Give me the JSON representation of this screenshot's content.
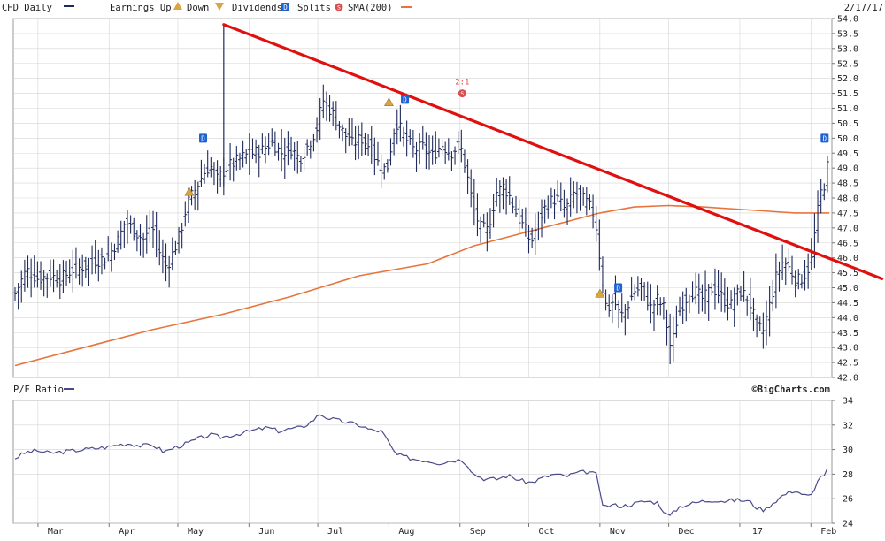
{
  "legend": {
    "ticker": "CHD Daily",
    "earnings_label": "Earnings Up",
    "down_label": "Down",
    "dividends_label": "Dividends",
    "dividend_badge": "D",
    "splits_label": "Splits",
    "split_badge": "S",
    "sma_label": "SMA(200)",
    "date": "2/17/17"
  },
  "pe_panel": {
    "label": "P/E Ratio"
  },
  "source": "©BigCharts.com",
  "colors": {
    "price_bar": "#1f2a5a",
    "sma": "#e8743b",
    "trendline": "#e01010",
    "pe_line": "#4a4a8a",
    "grid": "#d5d5d5",
    "badge_blue": "#1e62d0",
    "earnings_triangle": "#d9a441",
    "split_badge": "#d94f4f"
  },
  "chart_data": [
    {
      "type": "ohlc",
      "series_label": "CHD Daily",
      "ylim": [
        42.0,
        54.0
      ],
      "y_ticks": [
        "42.0",
        "42.5",
        "43.0",
        "43.5",
        "44.0",
        "44.5",
        "45.0",
        "45.5",
        "46.0",
        "46.5",
        "47.0",
        "47.5",
        "48.0",
        "48.5",
        "49.0",
        "49.5",
        "50.0",
        "50.5",
        "51.0",
        "51.5",
        "52.0",
        "52.5",
        "53.0",
        "53.5",
        "54.0"
      ],
      "x_ticks": [
        {
          "label": "Mar",
          "day": 10
        },
        {
          "label": "Apr",
          "day": 41
        },
        {
          "label": "May",
          "day": 71
        },
        {
          "label": "Jun",
          "day": 102
        },
        {
          "label": "Jul",
          "day": 132
        },
        {
          "label": "Aug",
          "day": 163
        },
        {
          "label": "Sep",
          "day": 194
        },
        {
          "label": "Oct",
          "day": 224
        },
        {
          "label": "Nov",
          "day": 255
        },
        {
          "label": "Dec",
          "day": 285
        },
        {
          "label": "17",
          "day": 316
        },
        {
          "label": "Feb",
          "day": 347
        }
      ],
      "x_range_days": [
        0,
        355
      ],
      "price_path": [
        [
          0,
          44.8
        ],
        [
          5,
          45.6
        ],
        [
          10,
          45.3
        ],
        [
          15,
          45.4
        ],
        [
          20,
          45.3
        ],
        [
          25,
          45.6
        ],
        [
          30,
          45.7
        ],
        [
          35,
          45.9
        ],
        [
          40,
          46.0
        ],
        [
          45,
          46.6
        ],
        [
          48,
          47.2
        ],
        [
          52,
          46.9
        ],
        [
          56,
          46.6
        ],
        [
          60,
          47.0
        ],
        [
          63,
          46.2
        ],
        [
          66,
          45.7
        ],
        [
          68,
          46.0
        ],
        [
          72,
          46.8
        ],
        [
          75,
          47.8
        ],
        [
          78,
          48.2
        ],
        [
          82,
          48.8
        ],
        [
          85,
          49.1
        ],
        [
          88,
          48.6
        ],
        [
          92,
          49.0
        ],
        [
          96,
          49.2
        ],
        [
          100,
          49.4
        ],
        [
          104,
          49.5
        ],
        [
          108,
          49.6
        ],
        [
          112,
          49.9
        ],
        [
          116,
          49.5
        ],
        [
          120,
          49.7
        ],
        [
          124,
          49.3
        ],
        [
          128,
          49.8
        ],
        [
          132,
          50.4
        ],
        [
          134,
          51.3
        ],
        [
          137,
          51.0
        ],
        [
          140,
          50.6
        ],
        [
          143,
          50.2
        ],
        [
          147,
          49.8
        ],
        [
          151,
          50.0
        ],
        [
          155,
          49.7
        ],
        [
          158,
          49.2
        ],
        [
          162,
          48.9
        ],
        [
          166,
          50.6
        ],
        [
          170,
          50.0
        ],
        [
          174,
          49.6
        ],
        [
          178,
          49.7
        ],
        [
          182,
          49.4
        ],
        [
          186,
          49.8
        ],
        [
          190,
          49.5
        ],
        [
          194,
          49.8
        ],
        [
          197,
          48.8
        ],
        [
          200,
          47.6
        ],
        [
          203,
          47.0
        ],
        [
          206,
          46.9
        ],
        [
          210,
          48.2
        ],
        [
          213,
          48.4
        ],
        [
          216,
          48.0
        ],
        [
          219,
          47.4
        ],
        [
          222,
          47.0
        ],
        [
          225,
          46.5
        ],
        [
          228,
          47.2
        ],
        [
          232,
          47.8
        ],
        [
          236,
          48.0
        ],
        [
          240,
          47.6
        ],
        [
          244,
          48.2
        ],
        [
          247,
          48.0
        ],
        [
          250,
          47.8
        ],
        [
          253,
          47.3
        ],
        [
          256,
          45.3
        ],
        [
          258,
          44.2
        ],
        [
          261,
          44.6
        ],
        [
          264,
          44.0
        ],
        [
          267,
          44.4
        ],
        [
          270,
          44.9
        ],
        [
          274,
          45.0
        ],
        [
          277,
          44.3
        ],
        [
          280,
          44.6
        ],
        [
          283,
          44.3
        ],
        [
          286,
          42.9
        ],
        [
          289,
          44.1
        ],
        [
          292,
          44.6
        ],
        [
          296,
          44.9
        ],
        [
          300,
          44.6
        ],
        [
          304,
          45.0
        ],
        [
          308,
          44.7
        ],
        [
          312,
          44.4
        ],
        [
          316,
          44.9
        ],
        [
          320,
          44.6
        ],
        [
          323,
          43.8
        ],
        [
          326,
          43.5
        ],
        [
          329,
          44.4
        ],
        [
          332,
          45.4
        ],
        [
          335,
          45.9
        ],
        [
          338,
          45.6
        ],
        [
          341,
          45.2
        ],
        [
          344,
          45.4
        ],
        [
          347,
          45.8
        ],
        [
          349,
          47.0
        ],
        [
          351,
          48.1
        ],
        [
          353,
          48.5
        ],
        [
          355,
          49.4
        ]
      ],
      "spike": {
        "day": 91,
        "high": 53.8,
        "low": 48.4
      },
      "sma_200": [
        [
          0,
          42.4
        ],
        [
          30,
          43.0
        ],
        [
          60,
          43.6
        ],
        [
          90,
          44.1
        ],
        [
          120,
          44.7
        ],
        [
          150,
          45.4
        ],
        [
          180,
          45.8
        ],
        [
          200,
          46.4
        ],
        [
          220,
          46.8
        ],
        [
          240,
          47.2
        ],
        [
          255,
          47.5
        ],
        [
          270,
          47.7
        ],
        [
          285,
          47.75
        ],
        [
          300,
          47.7
        ],
        [
          320,
          47.6
        ],
        [
          340,
          47.5
        ],
        [
          355,
          47.5
        ]
      ],
      "trendline": {
        "start": [
          91,
          53.8
        ],
        "end": [
          378,
          45.3
        ]
      },
      "markers": [
        {
          "kind": "earnings",
          "day": 76,
          "value": 48.2
        },
        {
          "kind": "dividend",
          "day": 82,
          "value": 50.0
        },
        {
          "kind": "earnings",
          "day": 163,
          "value": 51.2
        },
        {
          "kind": "dividend",
          "day": 170,
          "value": 51.3
        },
        {
          "kind": "split",
          "day": 195,
          "value": 51.5,
          "label": "2:1"
        },
        {
          "kind": "earnings",
          "day": 255,
          "value": 44.8
        },
        {
          "kind": "dividend",
          "day": 263,
          "value": 45.0
        },
        {
          "kind": "dividend",
          "day": 353,
          "value": 50.0
        }
      ]
    },
    {
      "type": "line",
      "series_label": "P/E Ratio",
      "ylim": [
        24,
        34
      ],
      "y_ticks": [
        24,
        26,
        28,
        30,
        32,
        34
      ],
      "x_range_days": [
        0,
        355
      ],
      "values": [
        [
          0,
          29.3
        ],
        [
          5,
          29.8
        ],
        [
          10,
          29.9
        ],
        [
          15,
          29.7
        ],
        [
          20,
          29.8
        ],
        [
          25,
          29.9
        ],
        [
          30,
          30.0
        ],
        [
          35,
          30.1
        ],
        [
          40,
          30.2
        ],
        [
          45,
          30.4
        ],
        [
          50,
          30.5
        ],
        [
          55,
          30.3
        ],
        [
          60,
          30.4
        ],
        [
          65,
          29.8
        ],
        [
          70,
          30.2
        ],
        [
          75,
          30.5
        ],
        [
          80,
          30.9
        ],
        [
          85,
          31.2
        ],
        [
          90,
          31.0
        ],
        [
          95,
          31.2
        ],
        [
          100,
          31.4
        ],
        [
          105,
          31.6
        ],
        [
          110,
          31.8
        ],
        [
          115,
          31.5
        ],
        [
          120,
          31.7
        ],
        [
          125,
          31.8
        ],
        [
          130,
          32.4
        ],
        [
          133,
          32.9
        ],
        [
          136,
          32.6
        ],
        [
          140,
          32.4
        ],
        [
          145,
          32.2
        ],
        [
          150,
          32.0
        ],
        [
          155,
          31.6
        ],
        [
          160,
          31.5
        ],
        [
          164,
          30.2
        ],
        [
          166,
          29.6
        ],
        [
          170,
          29.4
        ],
        [
          175,
          29.2
        ],
        [
          180,
          29.1
        ],
        [
          185,
          28.9
        ],
        [
          190,
          29.1
        ],
        [
          195,
          29.2
        ],
        [
          198,
          28.6
        ],
        [
          200,
          28.0
        ],
        [
          205,
          27.6
        ],
        [
          210,
          27.6
        ],
        [
          215,
          27.9
        ],
        [
          220,
          27.5
        ],
        [
          225,
          27.3
        ],
        [
          230,
          27.7
        ],
        [
          235,
          28.0
        ],
        [
          240,
          27.8
        ],
        [
          245,
          28.1
        ],
        [
          250,
          28.2
        ],
        [
          254,
          27.9
        ],
        [
          256,
          25.3
        ],
        [
          260,
          25.5
        ],
        [
          265,
          25.4
        ],
        [
          270,
          25.6
        ],
        [
          275,
          25.8
        ],
        [
          280,
          25.7
        ],
        [
          285,
          24.5
        ],
        [
          290,
          25.4
        ],
        [
          295,
          25.6
        ],
        [
          300,
          25.8
        ],
        [
          305,
          25.9
        ],
        [
          310,
          25.8
        ],
        [
          315,
          25.9
        ],
        [
          320,
          25.8
        ],
        [
          324,
          25.2
        ],
        [
          327,
          25.1
        ],
        [
          330,
          25.6
        ],
        [
          335,
          26.3
        ],
        [
          340,
          26.7
        ],
        [
          345,
          26.2
        ],
        [
          348,
          26.3
        ],
        [
          350,
          27.6
        ],
        [
          353,
          28.0
        ],
        [
          355,
          28.6
        ]
      ]
    }
  ]
}
